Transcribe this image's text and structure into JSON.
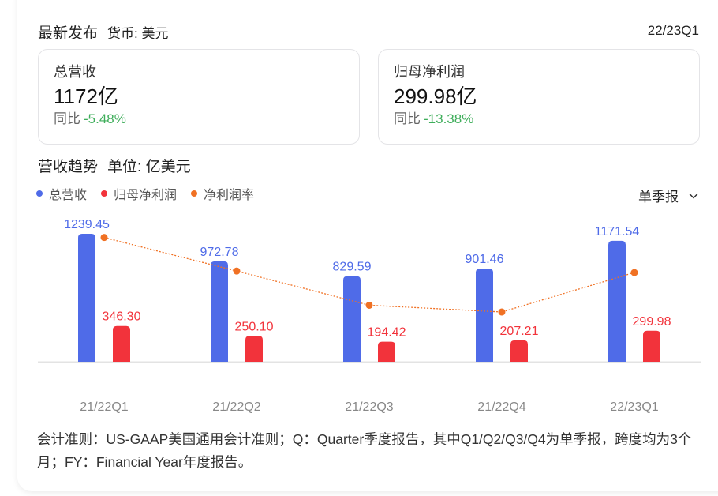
{
  "header": {
    "title": "最新发布",
    "currency": "货币: 美元",
    "period": "22/23Q1"
  },
  "kpis": [
    {
      "label": "总营收",
      "value": "1172亿",
      "yoy_label": "同比",
      "yoy_value": "-5.48%"
    },
    {
      "label": "归母净利润",
      "value": "299.98亿",
      "yoy_label": "同比",
      "yoy_value": "-13.38%"
    }
  ],
  "trend": {
    "title": "营收趋势",
    "unit": "单位: 亿美元",
    "period_selector": {
      "selected": "单季报",
      "icon": "chevron-down-icon"
    }
  },
  "colors": {
    "revenue": "#4f6be8",
    "net_profit": "#f2333b",
    "margin": "#f07124",
    "positive_change": "#3fae5b",
    "axis": "#e3e3e3"
  },
  "chart_data": {
    "type": "bar",
    "title": "营收趋势",
    "subtitle": "单位: 亿美元",
    "categories": [
      "21/22Q1",
      "21/22Q2",
      "21/22Q3",
      "21/22Q4",
      "22/23Q1"
    ],
    "series": [
      {
        "name": "总营收",
        "type": "bar",
        "color": "#4f6be8",
        "values": [
          1239.45,
          972.78,
          829.59,
          901.46,
          1171.54
        ]
      },
      {
        "name": "归母净利润",
        "type": "bar",
        "color": "#f2333b",
        "values": [
          346.3,
          250.1,
          194.42,
          207.21,
          299.98
        ]
      },
      {
        "name": "净利润率",
        "type": "line",
        "style": "dotted",
        "color": "#f07124",
        "values": [
          27.94,
          25.71,
          23.44,
          22.99,
          25.61
        ],
        "note": "values estimated as net profit / revenue (%), no axis shown"
      }
    ],
    "legend": [
      "总营收",
      "归母净利润",
      "净利润率"
    ],
    "legend_position": "top-left",
    "grid": false,
    "ylim": [
      0,
      1300
    ],
    "xlabel": "",
    "ylabel": ""
  },
  "footnote": "会计准则：US-GAAP美国通用会计准则；Q：Quarter季度报告，其中Q1/Q2/Q3/Q4为单季报，跨度均为3个月；FY：Financial Year年度报告。"
}
